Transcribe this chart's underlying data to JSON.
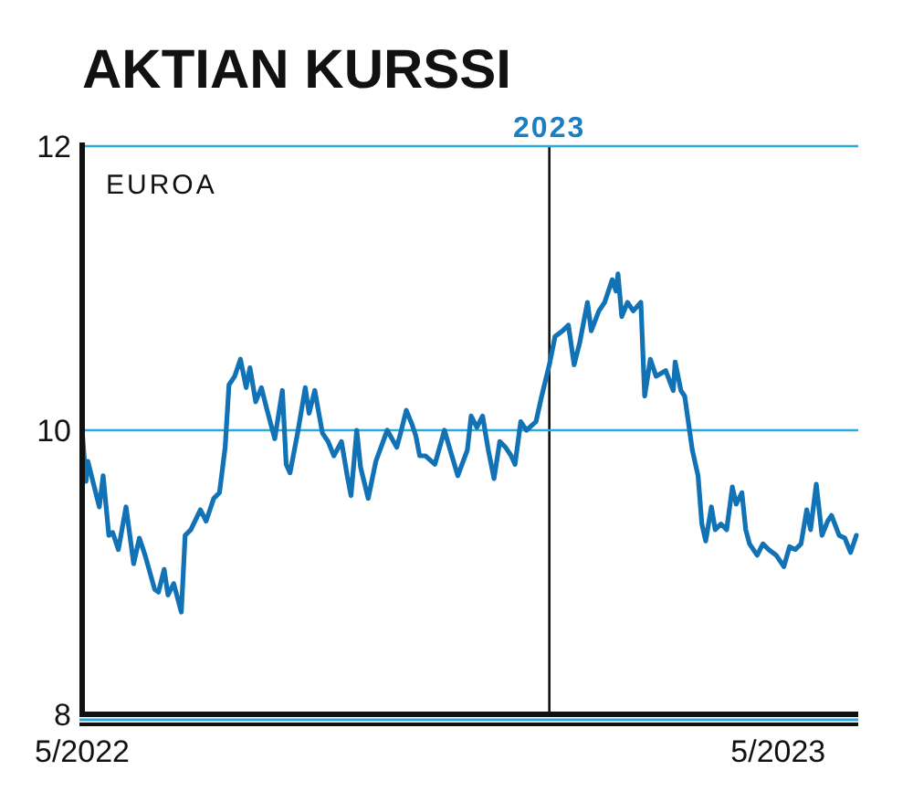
{
  "chart_data": {
    "type": "line",
    "title": "AKTIAN KURSSI",
    "ylabel": "EUROA",
    "xlim": [
      "2022-05-01",
      "2023-06-12"
    ],
    "xticks": [
      {
        "value": "2022-05-01",
        "label": "5/2022"
      },
      {
        "value": "2023-05-01",
        "label": "5/2023"
      }
    ],
    "ylim": [
      8,
      12
    ],
    "yticks": [
      8,
      10,
      12
    ],
    "ref_lines": [
      {
        "axis": "x",
        "value": "2023-01-01",
        "label": "2023",
        "color": "#111111"
      },
      {
        "axis": "y",
        "value": 10,
        "color": "#29a9e0"
      },
      {
        "axis": "y",
        "value": 12,
        "color": "#29a9e0"
      }
    ],
    "x": [
      "2022-05-01",
      "2022-05-03",
      "2022-05-04",
      "2022-05-07",
      "2022-05-10",
      "2022-05-12",
      "2022-05-15",
      "2022-05-17",
      "2022-05-20",
      "2022-05-24",
      "2022-05-28",
      "2022-05-31",
      "2022-06-03",
      "2022-06-08",
      "2022-06-10",
      "2022-06-13",
      "2022-06-15",
      "2022-06-18",
      "2022-06-22",
      "2022-06-24",
      "2022-06-27",
      "2022-07-02",
      "2022-07-05",
      "2022-07-09",
      "2022-07-12",
      "2022-07-15",
      "2022-07-17",
      "2022-07-20",
      "2022-07-23",
      "2022-07-26",
      "2022-07-28",
      "2022-07-31",
      "2022-08-03",
      "2022-08-06",
      "2022-08-10",
      "2022-08-14",
      "2022-08-16",
      "2022-08-18",
      "2022-08-22",
      "2022-08-26",
      "2022-08-28",
      "2022-08-31",
      "2022-09-04",
      "2022-09-07",
      "2022-09-10",
      "2022-09-14",
      "2022-09-17",
      "2022-09-19",
      "2022-09-22",
      "2022-09-24",
      "2022-09-28",
      "2022-10-02",
      "2022-10-08",
      "2022-10-13",
      "2022-10-15",
      "2022-10-18",
      "2022-10-21",
      "2022-10-23",
      "2022-10-25",
      "2022-10-28",
      "2022-11-02",
      "2022-11-07",
      "2022-11-10",
      "2022-11-14",
      "2022-11-19",
      "2022-11-21",
      "2022-11-24",
      "2022-11-27",
      "2022-11-30",
      "2022-12-03",
      "2022-12-06",
      "2022-12-09",
      "2022-12-12",
      "2022-12-14",
      "2022-12-17",
      "2022-12-20",
      "2022-12-25",
      "2022-12-28",
      "2023-01-01",
      "2023-01-04",
      "2023-01-08",
      "2023-01-11",
      "2023-01-14",
      "2023-01-17",
      "2023-01-21",
      "2023-01-23",
      "2023-01-27",
      "2023-01-30",
      "2023-02-03",
      "2023-02-05",
      "2023-02-06",
      "2023-02-08",
      "2023-02-11",
      "2023-02-14",
      "2023-02-18",
      "2023-02-20",
      "2023-02-23",
      "2023-02-26",
      "2023-03-03",
      "2023-03-07",
      "2023-03-08",
      "2023-03-11",
      "2023-03-13",
      "2023-03-17",
      "2023-03-20",
      "2023-03-22",
      "2023-03-24",
      "2023-03-27",
      "2023-03-29",
      "2023-04-01",
      "2023-04-04",
      "2023-04-07",
      "2023-04-09",
      "2023-04-12",
      "2023-04-14",
      "2023-04-16",
      "2023-04-20",
      "2023-04-23",
      "2023-04-26",
      "2023-04-30",
      "2023-05-04",
      "2023-05-07",
      "2023-05-10",
      "2023-05-13",
      "2023-05-16",
      "2023-05-18",
      "2023-05-21",
      "2023-05-24",
      "2023-05-27",
      "2023-05-29",
      "2023-06-02",
      "2023-06-05",
      "2023-06-08",
      "2023-06-11"
    ],
    "series": [
      {
        "color": "#1172b6",
        "values": [
          10.0,
          9.64,
          9.78,
          9.62,
          9.46,
          9.68,
          9.26,
          9.28,
          9.16,
          9.46,
          9.06,
          9.24,
          9.12,
          8.88,
          8.86,
          9.02,
          8.84,
          8.92,
          8.72,
          9.26,
          9.3,
          9.44,
          9.36,
          9.52,
          9.56,
          9.88,
          10.32,
          10.38,
          10.5,
          10.3,
          10.44,
          10.2,
          10.3,
          10.14,
          9.94,
          10.28,
          9.76,
          9.7,
          9.98,
          10.3,
          10.12,
          10.28,
          9.98,
          9.92,
          9.82,
          9.92,
          9.68,
          9.54,
          10.0,
          9.74,
          9.52,
          9.78,
          10.0,
          9.88,
          9.98,
          10.14,
          10.04,
          9.96,
          9.82,
          9.82,
          9.76,
          10.0,
          9.86,
          9.68,
          9.86,
          10.1,
          10.02,
          10.1,
          9.86,
          9.66,
          9.92,
          9.88,
          9.82,
          9.76,
          10.06,
          10.0,
          10.06,
          10.24,
          10.46,
          10.66,
          10.7,
          10.74,
          10.46,
          10.62,
          10.9,
          10.7,
          10.84,
          10.9,
          11.06,
          10.98,
          11.1,
          10.8,
          10.9,
          10.84,
          10.9,
          10.24,
          10.5,
          10.38,
          10.42,
          10.28,
          10.48,
          10.28,
          10.24,
          9.86,
          9.68,
          9.34,
          9.22,
          9.46,
          9.3,
          9.34,
          9.3,
          9.6,
          9.48,
          9.56,
          9.3,
          9.2,
          9.12,
          9.2,
          9.16,
          9.12,
          9.04,
          9.18,
          9.16,
          9.2,
          9.44,
          9.3,
          9.62,
          9.26,
          9.36,
          9.4,
          9.26,
          9.24,
          9.14,
          9.26
        ]
      }
    ]
  }
}
